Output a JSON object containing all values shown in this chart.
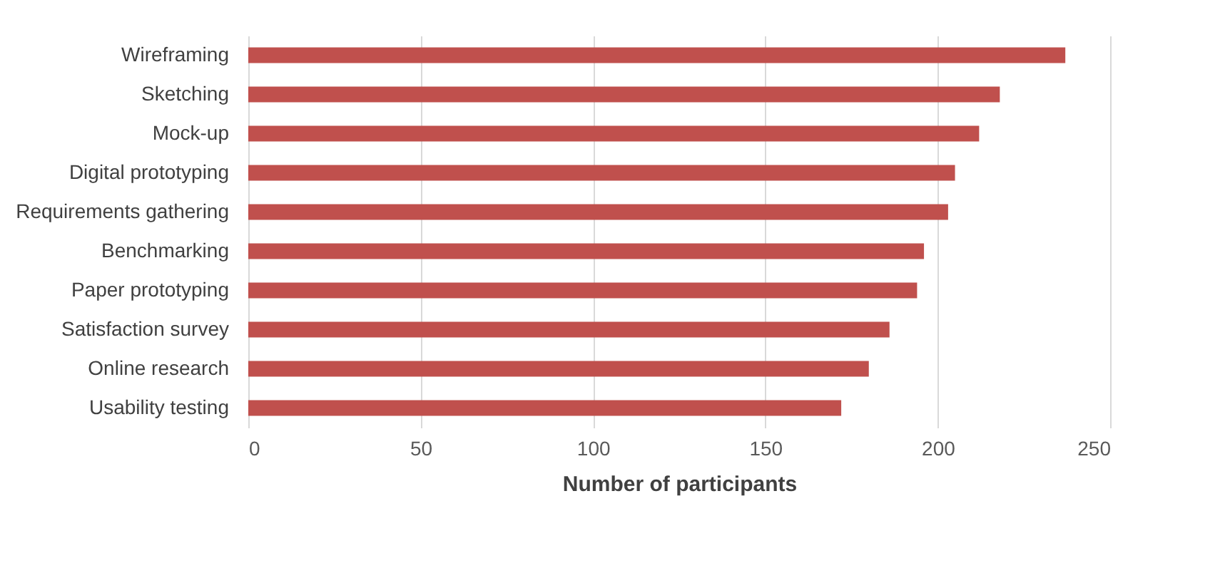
{
  "chart_data": {
    "type": "bar",
    "orientation": "horizontal",
    "xlabel": "Number of participants",
    "categories": [
      "Wireframing",
      "Sketching",
      "Mock-up",
      "Digital prototyping",
      "Requirements gathering",
      "Benchmarking",
      "Paper prototyping",
      "Satisfaction survey",
      "Online research",
      "Usability testing"
    ],
    "values": [
      237,
      218,
      212,
      205,
      203,
      196,
      194,
      186,
      180,
      172
    ],
    "color": "#c0504d",
    "xlim": [
      0,
      250
    ],
    "xticks": [
      0,
      50,
      100,
      150,
      200,
      250
    ],
    "grid": "x"
  }
}
